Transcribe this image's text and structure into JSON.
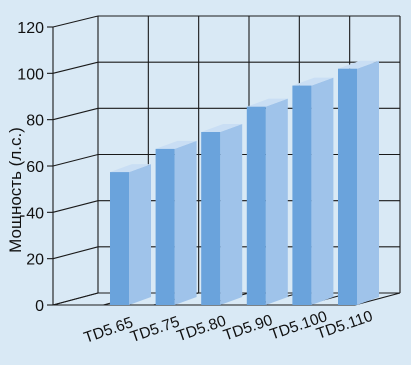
{
  "colors": {
    "background": "#d9e9f5",
    "grid": "#1a1a1a",
    "bar_front": "#6aa3dc",
    "bar_side": "#9fc3ea",
    "bar_top": "#c9def4",
    "text": "#111111"
  },
  "chart_data": {
    "type": "bar",
    "style": "3d",
    "categories": [
      "TD5.65",
      "TD5.75",
      "TD5.80",
      "TD5.90",
      "TD5.100",
      "TD5.110"
    ],
    "values": [
      63,
      74,
      82,
      94,
      104,
      112
    ],
    "title": "",
    "xlabel": "",
    "ylabel": "Мощность (л.с.)",
    "ylim": [
      0,
      120
    ],
    "yticks": [
      0,
      20,
      40,
      60,
      80,
      100,
      120
    ],
    "grid": true,
    "legend": "none"
  }
}
